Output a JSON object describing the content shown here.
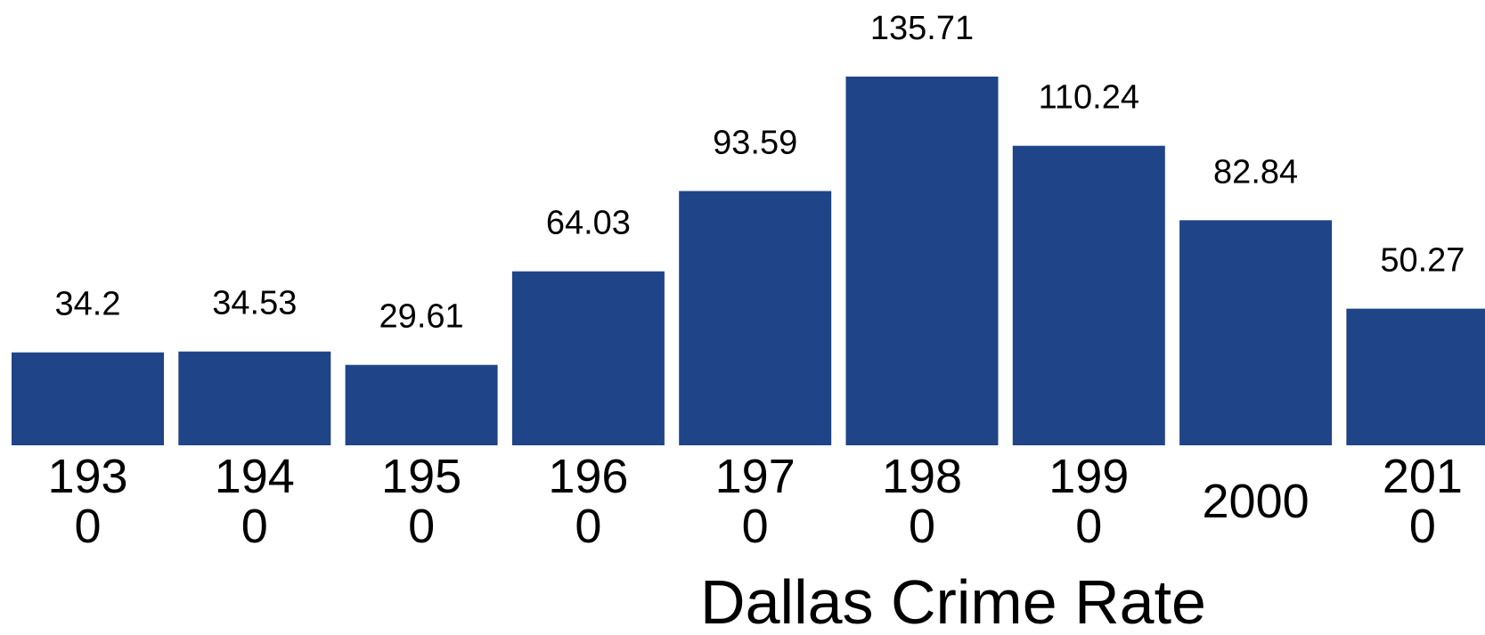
{
  "chart_data": {
    "type": "bar",
    "title": "",
    "xlabel": "Dallas Crime Rate",
    "ylabel": "",
    "categories": [
      "1930",
      "1940",
      "1950",
      "1960",
      "1970",
      "1980",
      "1990",
      "2000",
      "2010"
    ],
    "values": [
      34.2,
      34.53,
      29.61,
      64.03,
      93.59,
      135.71,
      110.24,
      82.84,
      50.27
    ],
    "value_labels": [
      "34.2",
      "34.53",
      "29.61",
      "64.03",
      "93.59",
      "135.71",
      "110.24",
      "82.84",
      "50.27"
    ],
    "ylim": [
      0,
      140
    ],
    "grid": false,
    "legend": "none",
    "colors": {
      "bar": "#1F4488",
      "text": "#000000",
      "background": "#FFFFFF"
    }
  }
}
